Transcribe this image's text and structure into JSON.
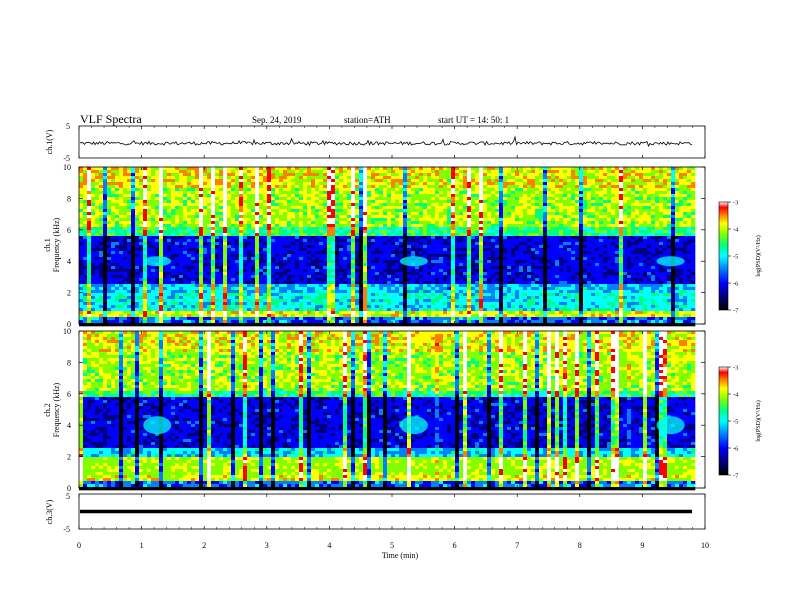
{
  "header": {
    "title": "VLF Spectra",
    "date": "Sep. 24, 2019",
    "station": "station=ATH",
    "start": "start UT = 14: 50: 1"
  },
  "chart_data": [
    {
      "type": "line",
      "panel": "ch1-waveform",
      "ylabel": "ch.1(V)",
      "ylim": [
        -5,
        5
      ],
      "yticks": [
        "5",
        "-5"
      ],
      "series": [
        {
          "values_summary": "noisy signal centered near -0.4 V, amplitude about ±0.6 V with occasional spikes to about +1 V"
        }
      ]
    },
    {
      "type": "heatmap",
      "panel": "ch1-spectrogram",
      "ylabel_prefix": "ch.1",
      "ylabel": "Frequency (kHz)",
      "ylim": [
        0,
        10
      ],
      "xlim": [
        0,
        9.8
      ],
      "yticks": [
        "0",
        "2",
        "4",
        "6",
        "8",
        "10"
      ],
      "colorbar": {
        "label": "log(PSD)(V²/Hz)",
        "range": [
          -7,
          -3
        ],
        "ticks": [
          "-3",
          "-4",
          "-5",
          "-6",
          "-7"
        ]
      },
      "features": {
        "bursts_at_4kHz_min": [
          1.25,
          5.35,
          9.45
        ],
        "quiet_band_kHz": [
          2.5,
          5.6
        ],
        "strong_band_kHz": [
          0.5,
          0.9
        ]
      }
    },
    {
      "type": "heatmap",
      "panel": "ch2-spectrogram",
      "ylabel_prefix": "ch.2",
      "ylabel": "Frequency (kHz)",
      "ylim": [
        0,
        10
      ],
      "xlim": [
        0,
        9.8
      ],
      "yticks": [
        "0",
        "2",
        "4",
        "6",
        "8",
        "10"
      ],
      "colorbar": {
        "label": "log(PSD)(V²/Hz)",
        "range": [
          -7,
          -3
        ],
        "ticks": [
          "-3",
          "-4",
          "-5",
          "-6",
          "-7"
        ]
      },
      "features": {
        "bursts_at_4kHz_min": [
          1.25,
          5.35,
          9.45
        ],
        "quiet_band_kHz": [
          2.6,
          5.8
        ],
        "strong_band_kHz": [
          0.5,
          2.0
        ]
      }
    },
    {
      "type": "line",
      "panel": "ch3-waveform",
      "ylabel": "ch.3(V)",
      "ylim": [
        -5,
        5
      ],
      "yticks": [
        "5",
        "-5"
      ],
      "series": [
        {
          "values_summary": "nearly constant at about -1.5 V"
        }
      ]
    }
  ],
  "xaxis": {
    "label": "Time (min)",
    "xlim": [
      0,
      10
    ],
    "ticks": [
      "0",
      "1",
      "2",
      "3",
      "4",
      "5",
      "6",
      "7",
      "8",
      "9",
      "10"
    ]
  },
  "colormap": [
    "#000000",
    "#00007a",
    "#0000ff",
    "#0080ff",
    "#00ffff",
    "#00ff80",
    "#80ff00",
    "#ffff00",
    "#ff8000",
    "#ff0000",
    "#ffffff"
  ]
}
